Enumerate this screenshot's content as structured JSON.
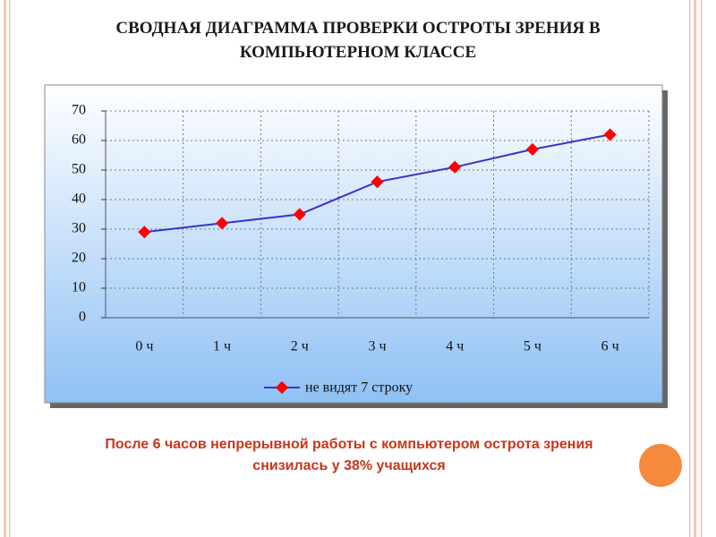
{
  "chart_data": {
    "type": "line",
    "title": "СВОДНАЯ ДИАГРАММА ПРОВЕРКИ ОСТРОТЫ ЗРЕНИЯ В КОМПЬЮТЕРНОМ КЛАССЕ",
    "categories": [
      "0 ч",
      "1 ч",
      "2 ч",
      "3 ч",
      "4 ч",
      "5 ч",
      "6 ч"
    ],
    "series": [
      {
        "name": "не видят 7 строку",
        "color": "#3333cc",
        "marker_color": "#ff0000",
        "values": [
          29,
          32,
          35,
          46,
          51,
          57,
          62
        ]
      }
    ],
    "ylim": [
      0,
      70
    ],
    "yticks": [
      0,
      10,
      20,
      30,
      40,
      50,
      60,
      70
    ],
    "grid": true,
    "legend": "bottom",
    "annotation": "После 6 часов непрерывной работы с компьютером острота зрения снизилась у 38% учащихся"
  }
}
